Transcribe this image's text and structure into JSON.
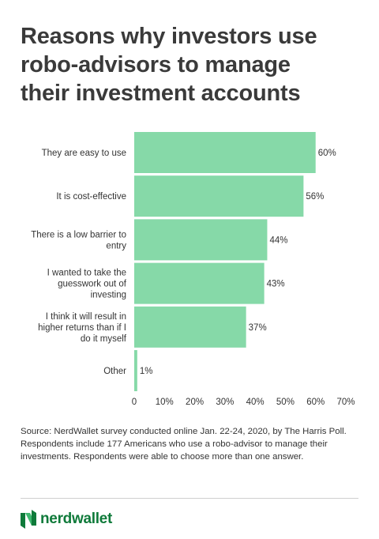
{
  "title_lines": [
    "Reasons why investors use",
    "robo-advisors to manage",
    "their investment accounts"
  ],
  "chart_data": {
    "type": "bar",
    "orientation": "horizontal",
    "categories": [
      [
        "They are easy to use"
      ],
      [
        "It is cost-effective"
      ],
      [
        "There is a low barrier to",
        "entry"
      ],
      [
        "I wanted to take the",
        "guesswork out of",
        "investing"
      ],
      [
        "I think it will result in",
        "higher returns than if I",
        "do it myself"
      ],
      [
        "Other"
      ]
    ],
    "values": [
      60,
      56,
      44,
      43,
      37,
      1
    ],
    "data_labels": [
      "60%",
      "56%",
      "44%",
      "43%",
      "37%",
      "1%"
    ],
    "xlim": [
      0,
      70
    ],
    "x_ticks": [
      0,
      10,
      20,
      30,
      40,
      50,
      60,
      70
    ],
    "x_tick_labels": [
      "0",
      "10%",
      "20%",
      "30%",
      "40%",
      "50%",
      "60%",
      "70%"
    ],
    "grid": false,
    "bar_color": "#86d9a8"
  },
  "source_text": "Source: NerdWallet survey conducted online Jan. 22-24, 2020, by The Harris Poll. Respondents include 177 Americans who use a robo-advisor to manage their investments. Respondents were able to choose more than one answer.",
  "brand": {
    "name": "nerdwallet",
    "logo_icon": "nerdwallet-n-logo-icon",
    "color": "#0f7a3a"
  }
}
